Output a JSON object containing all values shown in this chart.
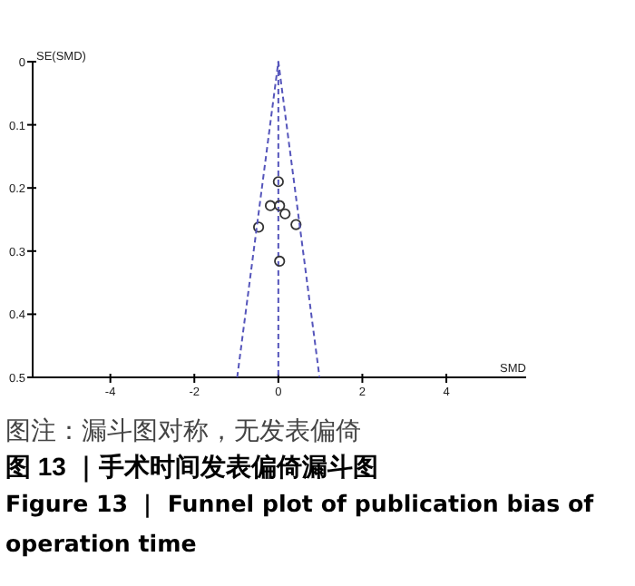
{
  "chart_data": {
    "type": "scatter",
    "title": "图 13 ｜手术时间发表偏倚漏斗图",
    "subtitle": "Figure 13 ｜ Funnel plot of publication bias of operation time",
    "annotations": [
      "图注：漏斗图对称，无发表偏倚"
    ],
    "xlabel": "SMD",
    "ylabel": "SE(SMD)",
    "xlim": [
      -5.85,
      5.9
    ],
    "ylim": [
      0.5,
      0
    ],
    "xticks": [
      -4,
      -2,
      0,
      2,
      4
    ],
    "yticks": [
      0,
      0.1,
      0.2,
      0.3,
      0.4,
      0.5
    ],
    "grid": false,
    "series": [
      {
        "x": [
          0,
          -0.19,
          0.03,
          0.16,
          0.42,
          -0.47,
          0.03
        ],
        "values": [
          0.19,
          0.228,
          0.228,
          0.241,
          0.258,
          0.262,
          0.316
        ],
        "color": "#333333"
      },
      {
        "type": "line",
        "x": [
          -0.98,
          0,
          0.98
        ],
        "values": [
          0.5,
          0,
          0.5
        ],
        "color": "#5555bb",
        "line_style": "dashed",
        "marker": "none"
      }
    ],
    "ref_lines": [
      {
        "axis": "x",
        "value": 0,
        "color": "#5555bb",
        "line_style": "dashed"
      }
    ]
  }
}
